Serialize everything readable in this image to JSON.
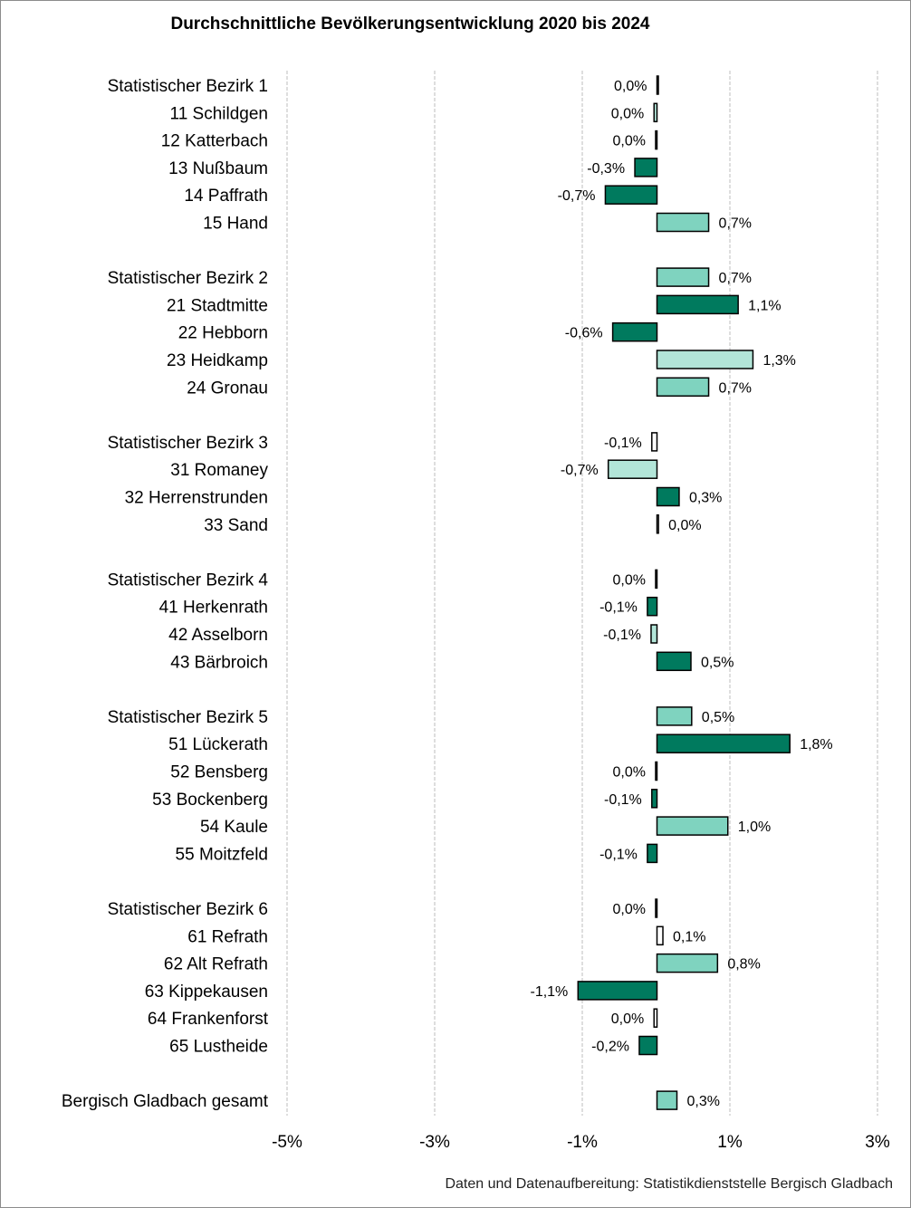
{
  "chart_data": {
    "type": "bar",
    "orientation": "horizontal",
    "title": "Durchschnittliche Bevölkerungsentwicklung 2020 bis 2024",
    "xlim": [
      -5,
      3
    ],
    "xticks": [
      -5,
      -3,
      -1,
      1,
      3
    ],
    "xtick_labels": [
      "-5%",
      "-3%",
      "-1%",
      "1%",
      "3%"
    ],
    "grid": "vertical dashed",
    "colors": {
      "dark": "#007a5e",
      "medium": "#7fd3bf",
      "light": "#b2e5d8",
      "white": "#ffffff",
      "edge": "#000000"
    },
    "groups": [
      {
        "rows": [
          {
            "label": "Statistischer Bezirk 1",
            "value": 0.0,
            "value_label": "0,0%",
            "color": "white"
          },
          {
            "label": "11 Schildgen",
            "value": -0.04,
            "value_label": "0,0%",
            "color": "light"
          },
          {
            "label": "12 Katterbach",
            "value": -0.01,
            "value_label": "0,0%",
            "color": "white"
          },
          {
            "label": "13 Nußbaum",
            "value": -0.3,
            "value_label": "-0,3%",
            "color": "dark"
          },
          {
            "label": "14 Paffrath",
            "value": -0.7,
            "value_label": "-0,7%",
            "color": "dark"
          },
          {
            "label": "15 Hand",
            "value": 0.7,
            "value_label": "0,7%",
            "color": "medium"
          }
        ]
      },
      {
        "rows": [
          {
            "label": "Statistischer Bezirk 2",
            "value": 0.7,
            "value_label": "0,7%",
            "color": "medium"
          },
          {
            "label": "21 Stadtmitte",
            "value": 1.1,
            "value_label": "1,1%",
            "color": "dark"
          },
          {
            "label": "22 Hebborn",
            "value": -0.6,
            "value_label": "-0,6%",
            "color": "dark"
          },
          {
            "label": "23 Heidkamp",
            "value": 1.3,
            "value_label": "1,3%",
            "color": "light"
          },
          {
            "label": "24 Gronau",
            "value": 0.7,
            "value_label": "0,7%",
            "color": "medium"
          }
        ]
      },
      {
        "rows": [
          {
            "label": "Statistischer Bezirk 3",
            "value": -0.07,
            "value_label": "-0,1%",
            "color": "white"
          },
          {
            "label": "31 Romaney",
            "value": -0.66,
            "value_label": "-0,7%",
            "color": "light"
          },
          {
            "label": "32 Herrenstrunden",
            "value": 0.3,
            "value_label": "0,3%",
            "color": "dark"
          },
          {
            "label": "33 Sand",
            "value": 0.02,
            "value_label": "0,0%",
            "color": "white"
          }
        ]
      },
      {
        "rows": [
          {
            "label": "Statistischer Bezirk 4",
            "value": -0.01,
            "value_label": "0,0%",
            "color": "white"
          },
          {
            "label": "41 Herkenrath",
            "value": -0.13,
            "value_label": "-0,1%",
            "color": "dark"
          },
          {
            "label": "42 Asselborn",
            "value": -0.08,
            "value_label": "-0,1%",
            "color": "light"
          },
          {
            "label": "43 Bärbroich",
            "value": 0.46,
            "value_label": "0,5%",
            "color": "dark"
          }
        ]
      },
      {
        "rows": [
          {
            "label": "Statistischer Bezirk 5",
            "value": 0.47,
            "value_label": "0,5%",
            "color": "medium"
          },
          {
            "label": "51 Lückerath",
            "value": 1.8,
            "value_label": "1,8%",
            "color": "dark"
          },
          {
            "label": "52 Bensberg",
            "value": -0.01,
            "value_label": "0,0%",
            "color": "white"
          },
          {
            "label": "53 Bockenberg",
            "value": -0.07,
            "value_label": "-0,1%",
            "color": "dark"
          },
          {
            "label": "54 Kaule",
            "value": 0.96,
            "value_label": "1,0%",
            "color": "medium"
          },
          {
            "label": "55 Moitzfeld",
            "value": -0.13,
            "value_label": "-0,1%",
            "color": "dark"
          }
        ]
      },
      {
        "rows": [
          {
            "label": "Statistischer Bezirk 6",
            "value": -0.01,
            "value_label": "0,0%",
            "color": "white"
          },
          {
            "label": "61 Refrath",
            "value": 0.08,
            "value_label": "0,1%",
            "color": "white"
          },
          {
            "label": "62 Alt Refrath",
            "value": 0.82,
            "value_label": "0,8%",
            "color": "medium"
          },
          {
            "label": "63 Kippekausen",
            "value": -1.07,
            "value_label": "-1,1%",
            "color": "dark"
          },
          {
            "label": "64 Frankenforst",
            "value": -0.04,
            "value_label": "0,0%",
            "color": "white"
          },
          {
            "label": "65 Lustheide",
            "value": -0.24,
            "value_label": "-0,2%",
            "color": "dark"
          }
        ]
      },
      {
        "rows": [
          {
            "label": "Bergisch Gladbach gesamt",
            "value": 0.27,
            "value_label": "0,3%",
            "color": "medium"
          }
        ]
      }
    ]
  },
  "footer": {
    "source": "Daten und Datenaufbereitung: Statistikdienststelle Bergisch Gladbach"
  }
}
